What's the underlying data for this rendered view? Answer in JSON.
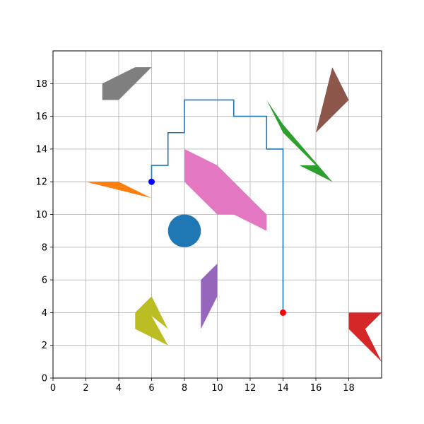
{
  "chart_data": {
    "type": "scatter",
    "title": "",
    "xlabel": "",
    "ylabel": "",
    "xlim": [
      0,
      20
    ],
    "ylim": [
      0,
      20
    ],
    "x_ticks": [
      0,
      2,
      4,
      6,
      8,
      10,
      12,
      14,
      16,
      18
    ],
    "y_ticks": [
      0,
      2,
      4,
      6,
      8,
      10,
      12,
      14,
      16,
      18
    ],
    "x_tick_labels": [
      "0",
      "2",
      "4",
      "6",
      "8",
      "10",
      "12",
      "14",
      "16",
      "18"
    ],
    "y_tick_labels": [
      "0",
      "2",
      "4",
      "6",
      "8",
      "10",
      "12",
      "14",
      "16",
      "18"
    ],
    "grid": true,
    "path": {
      "color": "#1f77b4",
      "points": [
        [
          6,
          12
        ],
        [
          6,
          13
        ],
        [
          7,
          13
        ],
        [
          7,
          15
        ],
        [
          8,
          15
        ],
        [
          8,
          17
        ],
        [
          11,
          17
        ],
        [
          11,
          16
        ],
        [
          13,
          16
        ],
        [
          13,
          14
        ],
        [
          14,
          14
        ],
        [
          14,
          4
        ]
      ]
    },
    "start_point": {
      "x": 6,
      "y": 12,
      "color": "#0000ff"
    },
    "end_point": {
      "x": 14,
      "y": 4,
      "color": "#ff0000"
    },
    "circles": [
      {
        "name": "circle-obstacle",
        "color": "#1f77b4",
        "cx": 8,
        "cy": 9,
        "r": 1
      }
    ],
    "polygons": [
      {
        "name": "gray",
        "color": "#7f7f7f",
        "points": [
          [
            3,
            17
          ],
          [
            4,
            17
          ],
          [
            6,
            19
          ],
          [
            5,
            19
          ],
          [
            3,
            18
          ]
        ]
      },
      {
        "name": "orange",
        "color": "#ff7f0e",
        "points": [
          [
            2,
            12
          ],
          [
            4,
            12
          ],
          [
            6,
            11
          ]
        ]
      },
      {
        "name": "pink",
        "color": "#e377c2",
        "points": [
          [
            8,
            14
          ],
          [
            10,
            13
          ],
          [
            13,
            10
          ],
          [
            13,
            9
          ],
          [
            11,
            10
          ],
          [
            10,
            10
          ],
          [
            8,
            12
          ]
        ]
      },
      {
        "name": "green",
        "color": "#2ca02c",
        "points": [
          [
            13,
            17
          ],
          [
            14,
            15
          ],
          [
            16,
            13
          ],
          [
            15,
            13
          ],
          [
            17,
            12
          ],
          [
            14,
            15.5
          ]
        ]
      },
      {
        "name": "brown",
        "color": "#8c564b",
        "points": [
          [
            16,
            15
          ],
          [
            17,
            19
          ],
          [
            18,
            17
          ]
        ]
      },
      {
        "name": "purple",
        "color": "#9467bd",
        "points": [
          [
            9,
            3
          ],
          [
            9,
            6
          ],
          [
            10,
            7
          ],
          [
            10,
            5
          ]
        ]
      },
      {
        "name": "olive",
        "color": "#bcbd22",
        "points": [
          [
            5,
            3
          ],
          [
            5,
            4
          ],
          [
            6,
            5
          ],
          [
            7,
            3
          ],
          [
            6,
            3.8
          ],
          [
            7,
            2
          ]
        ]
      },
      {
        "name": "red",
        "color": "#d62728",
        "points": [
          [
            18,
            3
          ],
          [
            18,
            4
          ],
          [
            20,
            4
          ],
          [
            19,
            3
          ],
          [
            20,
            1
          ]
        ]
      }
    ]
  }
}
